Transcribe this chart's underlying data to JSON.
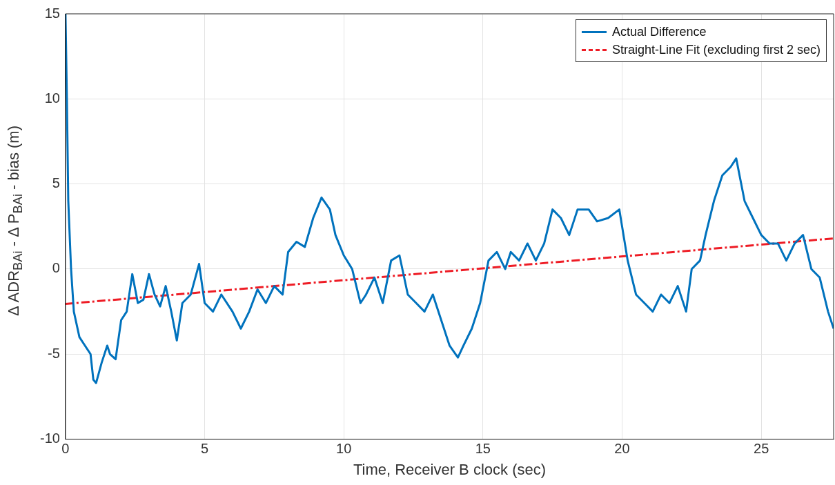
{
  "chart_data": {
    "type": "line",
    "xlabel": "Time, Receiver B clock (sec)",
    "ylabel": "Δ ADR$_{BAi}$ - Δ P$_{BAi}$ - bias (m)",
    "xlim": [
      0,
      27.6
    ],
    "xticks": [
      0,
      5,
      10,
      15,
      20,
      25
    ],
    "ylim": [
      -10,
      15
    ],
    "yticks": [
      -10,
      -5,
      0,
      5,
      10,
      15
    ],
    "grid": true,
    "legend": "top right",
    "series": [
      {
        "name": "Actual Difference",
        "color": "#0072bd",
        "line_style": "solid",
        "x": [
          0,
          0.05,
          0.1,
          0.2,
          0.3,
          0.5,
          0.7,
          0.9,
          1.0,
          1.1,
          1.3,
          1.5,
          1.6,
          1.8,
          2.0,
          2.2,
          2.4,
          2.6,
          2.8,
          3.0,
          3.2,
          3.4,
          3.6,
          3.8,
          4.0,
          4.2,
          4.5,
          4.8,
          5.0,
          5.3,
          5.6,
          6.0,
          6.3,
          6.6,
          6.9,
          7.2,
          7.5,
          7.8,
          8.0,
          8.3,
          8.6,
          8.9,
          9.2,
          9.5,
          9.7,
          10.0,
          10.3,
          10.6,
          10.8,
          11.1,
          11.4,
          11.7,
          12.0,
          12.3,
          12.6,
          12.9,
          13.2,
          13.5,
          13.8,
          14.1,
          14.3,
          14.6,
          14.9,
          15.2,
          15.5,
          15.8,
          16.0,
          16.3,
          16.6,
          16.9,
          17.2,
          17.5,
          17.8,
          18.1,
          18.4,
          18.8,
          19.1,
          19.5,
          19.9,
          20.2,
          20.5,
          20.8,
          21.1,
          21.4,
          21.7,
          22.0,
          22.3,
          22.5,
          22.8,
          23.0,
          23.3,
          23.6,
          23.9,
          24.1,
          24.4,
          24.7,
          25.0,
          25.3,
          25.6,
          25.9,
          26.2,
          26.5,
          26.8,
          27.1,
          27.4,
          27.6
        ],
        "values": [
          15,
          10,
          4,
          0,
          -2.5,
          -4,
          -4.5,
          -5,
          -6.5,
          -6.7,
          -5.5,
          -4.5,
          -5,
          -5.3,
          -3,
          -2.5,
          -0.3,
          -2,
          -1.8,
          -0.3,
          -1.5,
          -2.2,
          -1,
          -2.5,
          -4.2,
          -2,
          -1.5,
          0.3,
          -2,
          -2.5,
          -1.5,
          -2.5,
          -3.5,
          -2.5,
          -1.2,
          -2,
          -1,
          -1.5,
          1,
          1.6,
          1.3,
          3,
          4.2,
          3.5,
          2,
          0.8,
          0,
          -2,
          -1.5,
          -0.5,
          -2,
          0.5,
          0.8,
          -1.5,
          -2,
          -2.5,
          -1.5,
          -3,
          -4.5,
          -5.2,
          -4.5,
          -3.5,
          -2,
          0.5,
          1,
          0,
          1,
          0.5,
          1.5,
          0.5,
          1.5,
          3.5,
          3,
          2,
          3.5,
          3.5,
          2.8,
          3,
          3.5,
          0.5,
          -1.5,
          -2,
          -2.5,
          -1.5,
          -2,
          -1,
          -2.5,
          0,
          0.5,
          2,
          4,
          5.5,
          6,
          6.5,
          4,
          3,
          2,
          1.5,
          1.5,
          0.5,
          1.5,
          2,
          0,
          -0.5,
          -2.5,
          -3.5
        ]
      },
      {
        "name": "Straight-Line Fit (excluding first 2 sec)",
        "color": "#ee1c25",
        "line_style": "dashed",
        "x": [
          0,
          27.6
        ],
        "values": [
          -2.05,
          1.8
        ]
      }
    ]
  }
}
